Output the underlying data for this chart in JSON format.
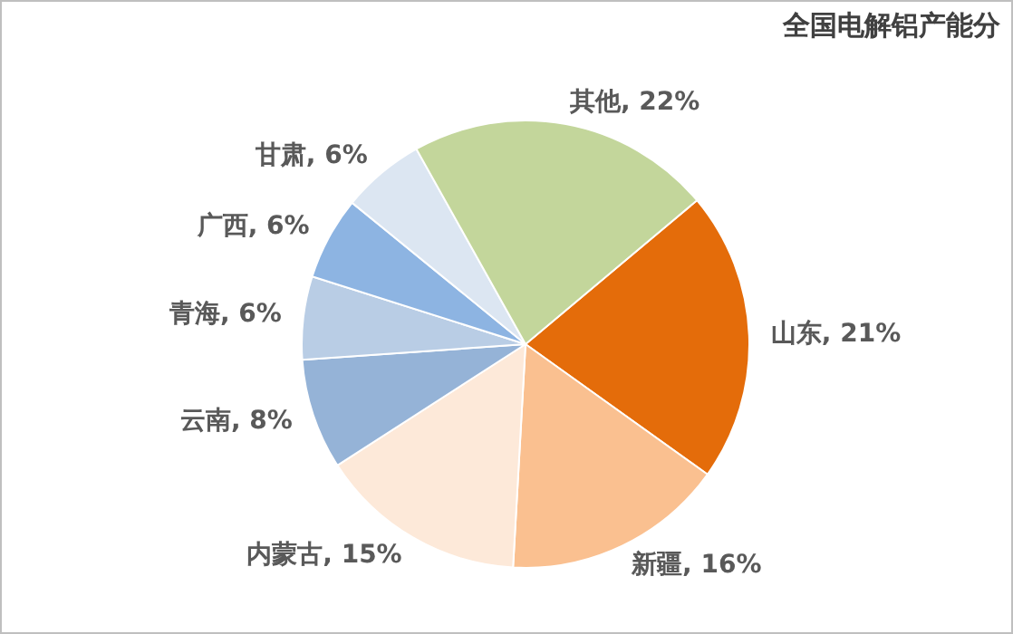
{
  "chart_data": {
    "type": "pie",
    "title": "全国电解铝产能分",
    "categories": [
      "山东",
      "新疆",
      "内蒙古",
      "云南",
      "青海",
      "广西",
      "甘肃",
      "其他"
    ],
    "values": [
      21,
      16,
      15,
      8,
      6,
      6,
      6,
      22
    ],
    "value_labels": [
      "21%",
      "16%",
      "15%",
      "8%",
      "6%",
      "6%",
      "6%",
      "22%"
    ],
    "colors": [
      "#e46c0a",
      "#fac090",
      "#fde9d9",
      "#95b3d7",
      "#b9cde5",
      "#8db4e2",
      "#dce6f2",
      "#c3d69b"
    ],
    "legend": false
  }
}
